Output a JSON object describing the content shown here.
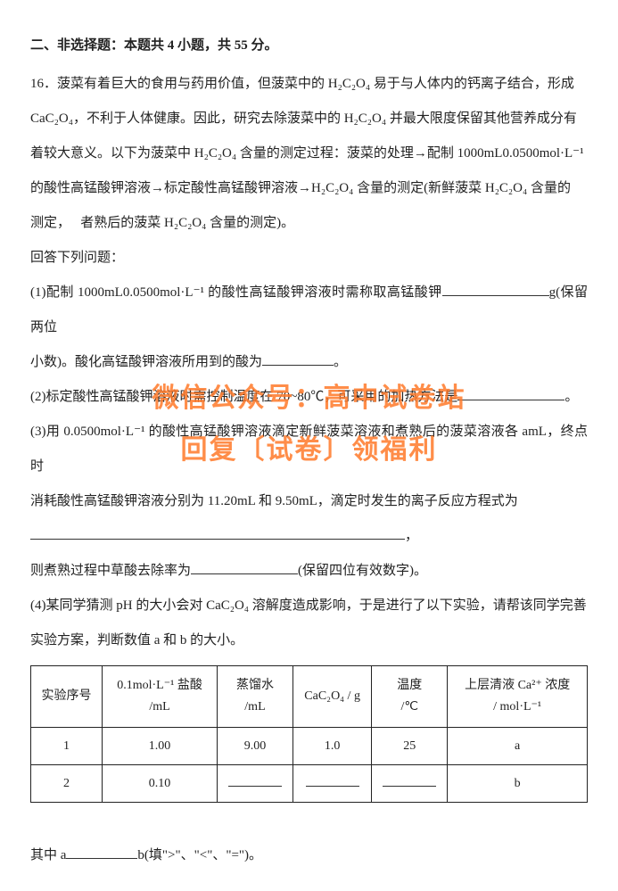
{
  "section_header": "二、非选择题：本题共 4 小题，共 55 分。",
  "q16": {
    "stem1": "16．菠菜有着巨大的食用与药用价值，但菠菜中的 H₂C₂O₄ 易于与人体内的钙离子结合，形成",
    "stem2": "CaC₂O₄，不利于人体健康。因此，研究去除菠菜中的 H₂C₂O₄ 并最大限度保留其他营养成分有",
    "stem3": "着较大意义。以下为菠菜中 H₂C₂O₄ 含量的测定过程：菠菜的处理→配制 1000mL0.0500mol·L⁻¹",
    "stem4": "的酸性高锰酸钾溶液→标定酸性高锰酸钾溶液→H₂C₂O₄ 含量的测定(新鲜菠菜 H₂C₂O₄ 含量的",
    "stem5": "测定，   者熟后的菠菜 H₂C₂O₄ 含量的测定)。",
    "answer_lead": "回答下列问题：",
    "p1a": "(1)配制 1000mL0.0500mol·L⁻¹ 的酸性高锰酸钾溶液时需称取高锰酸钾",
    "p1b": "g(保留两位",
    "p1c": "小数)。酸化高锰酸钾溶液所用到的酸为",
    "p1d": "。",
    "p2a": "(2)标定酸性高锰酸钾溶液时需控制温度在 70~80℃，可采用的加热方法是",
    "p2b": "。",
    "p3a": "(3)用 0.0500mol·L⁻¹ 的酸性高锰酸钾溶液滴定新鲜菠菜溶液和煮熟后的菠菜溶液各 amL，终点时",
    "p3b": "消耗酸性高锰酸钾溶液分别为 11.20mL 和 9.50mL，滴定时发生的离子反应方程式为",
    "p3c": "，",
    "p3d": "则煮熟过程中草酸去除率为",
    "p3e": "(保留四位有效数字)。",
    "p4a": "(4)某同学猜测 pH 的大小会对 CaC₂O₄ 溶解度造成影响，于是进行了以下实验，请帮该同学完善",
    "p4b": "实验方案，判断数值 a 和 b 的大小。",
    "footer_a": "其中 a",
    "footer_b": "b(填\">\"、\"<\"、\"=\")。"
  },
  "table": {
    "headers": {
      "c1": "实验序号",
      "c2_l1": "0.1mol·L⁻¹ 盐酸",
      "c2_l2": "/mL",
      "c3_l1": "蒸馏水",
      "c3_l2": "/mL",
      "c4": "CaC₂O₄ / g",
      "c5_l1": "温度",
      "c5_l2": "/℃",
      "c6_l1": "上层清液 Ca²⁺ 浓度",
      "c6_l2": "/ mol·L⁻¹"
    },
    "rows": [
      {
        "n": "1",
        "hcl": "1.00",
        "h2o": "9.00",
        "cac2o4": "1.0",
        "temp": "25",
        "conc": "a"
      },
      {
        "n": "2",
        "hcl": "0.10",
        "h2o": "",
        "cac2o4": "",
        "temp": "",
        "conc": "b"
      }
    ]
  },
  "watermark": {
    "line1": "微信公众号：高中试卷站",
    "line2": "回复〔试卷〕领福利"
  }
}
